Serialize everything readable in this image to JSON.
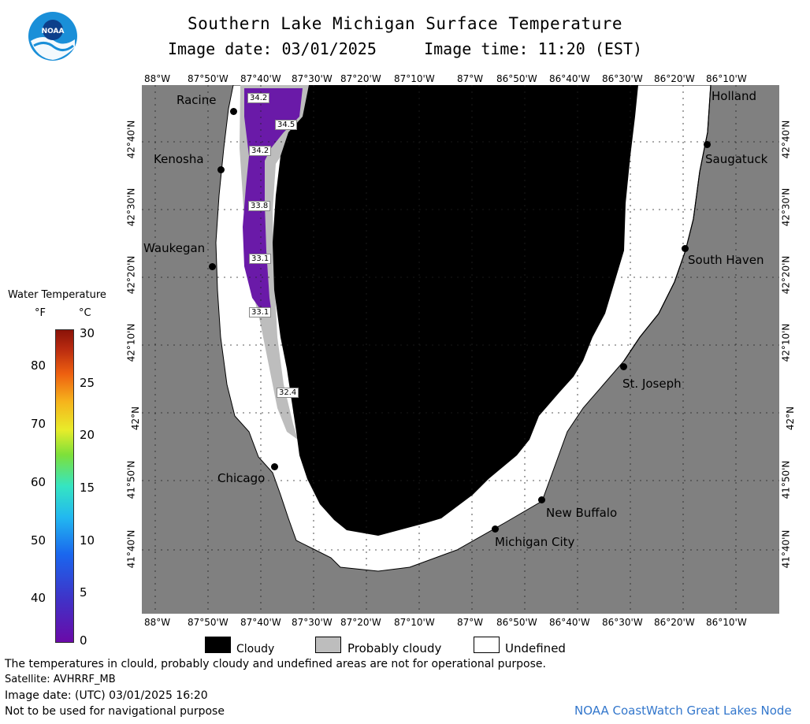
{
  "header": {
    "title": "Southern Lake Michigan Surface Temperature",
    "subtitle": "Image date: 03/01/2025     Image time: 11:20 (EST)"
  },
  "logo": {
    "text": "NOAA",
    "icon": "noaa-logo"
  },
  "map": {
    "colors": {
      "land": "#808080",
      "cloudy": "#000000",
      "probably_cloudy": "#bdbdbd",
      "undefined": "#ffffff",
      "water_cold": "#6a1aa8"
    },
    "x_ticks": [
      "88°W",
      "87°50'W",
      "87°40'W",
      "87°30'W",
      "87°20'W",
      "87°10'W",
      "87°W",
      "86°50'W",
      "86°40'W",
      "86°30'W",
      "86°20'W",
      "86°10'W"
    ],
    "y_ticks": [
      "42°40'N",
      "42°30'N",
      "42°20'N",
      "42°10'N",
      "42°N",
      "41°50'N",
      "41°40'N"
    ],
    "cities": [
      "Racine",
      "Kenosha",
      "Waukegan",
      "Chicago",
      "Michigan City",
      "New Buffalo",
      "St. Joseph",
      "South Haven",
      "Saugatuck",
      "Holland"
    ],
    "temperature_labels": [
      "34.2",
      "34.5",
      "34.2",
      "33.8",
      "33.1",
      "33.1",
      "32.4"
    ]
  },
  "legend": {
    "title": "Water Temperature",
    "unit_f": "°F",
    "unit_c": "°C",
    "f_ticks": [
      "80",
      "70",
      "60",
      "50",
      "40"
    ],
    "c_ticks": [
      "30",
      "25",
      "20",
      "15",
      "10",
      "5",
      "0"
    ],
    "c_range": [
      0,
      30
    ]
  },
  "key": {
    "cloudy": "Cloudy",
    "probably_cloudy": "Probably cloudy",
    "undefined": "Undefined"
  },
  "footer": {
    "line1": "The temperatures in clould, probably cloudy and undefined areas are not for operational purpose.",
    "line2": "Satellite: AVHRRF_MB",
    "line3": "Image date: (UTC) 03/01/2025  16:20",
    "line4": "Not to be used for navigational purpose",
    "credit": "NOAA CoastWatch Great Lakes Node"
  }
}
